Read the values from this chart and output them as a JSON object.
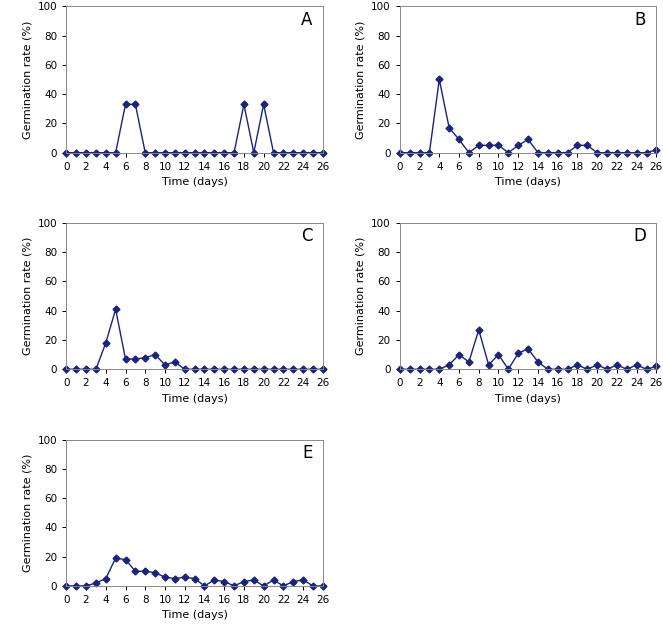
{
  "panels": [
    {
      "label": "A",
      "x": [
        0,
        1,
        2,
        3,
        4,
        5,
        6,
        7,
        8,
        9,
        10,
        11,
        12,
        13,
        14,
        15,
        16,
        17,
        18,
        19,
        20,
        21,
        22,
        23,
        24,
        25,
        26
      ],
      "y": [
        0,
        0,
        0,
        0,
        0,
        0,
        33,
        33,
        0,
        0,
        0,
        0,
        0,
        0,
        0,
        0,
        0,
        0,
        33,
        0,
        33,
        0,
        0,
        0,
        0,
        0,
        0
      ]
    },
    {
      "label": "B",
      "x": [
        0,
        1,
        2,
        3,
        4,
        5,
        6,
        7,
        8,
        9,
        10,
        11,
        12,
        13,
        14,
        15,
        16,
        17,
        18,
        19,
        20,
        21,
        22,
        23,
        24,
        25,
        26
      ],
      "y": [
        0,
        0,
        0,
        0,
        50,
        17,
        9,
        0,
        5,
        5,
        5,
        0,
        5,
        9,
        0,
        0,
        0,
        0,
        5,
        5,
        0,
        0,
        0,
        0,
        0,
        0,
        2
      ]
    },
    {
      "label": "C",
      "x": [
        0,
        1,
        2,
        3,
        4,
        5,
        6,
        7,
        8,
        9,
        10,
        11,
        12,
        13,
        14,
        15,
        16,
        17,
        18,
        19,
        20,
        21,
        22,
        23,
        24,
        25,
        26
      ],
      "y": [
        0,
        0,
        0,
        0,
        18,
        41,
        7,
        7,
        8,
        10,
        3,
        5,
        0,
        0,
        0,
        0,
        0,
        0,
        0,
        0,
        0,
        0,
        0,
        0,
        0,
        0,
        0
      ]
    },
    {
      "label": "D",
      "x": [
        0,
        1,
        2,
        3,
        4,
        5,
        6,
        7,
        8,
        9,
        10,
        11,
        12,
        13,
        14,
        15,
        16,
        17,
        18,
        19,
        20,
        21,
        22,
        23,
        24,
        25,
        26
      ],
      "y": [
        0,
        0,
        0,
        0,
        0,
        3,
        10,
        5,
        27,
        3,
        10,
        0,
        11,
        14,
        5,
        0,
        0,
        0,
        3,
        0,
        3,
        0,
        3,
        0,
        3,
        0,
        2
      ]
    },
    {
      "label": "E",
      "x": [
        0,
        1,
        2,
        3,
        4,
        5,
        6,
        7,
        8,
        9,
        10,
        11,
        12,
        13,
        14,
        15,
        16,
        17,
        18,
        19,
        20,
        21,
        22,
        23,
        24,
        25,
        26
      ],
      "y": [
        0,
        0,
        0,
        2,
        5,
        19,
        18,
        10,
        10,
        9,
        6,
        5,
        6,
        5,
        0,
        4,
        3,
        0,
        3,
        4,
        0,
        4,
        0,
        3,
        4,
        0,
        0
      ]
    }
  ],
  "line_color": "#1a237e",
  "marker": "D",
  "marker_size": 3.5,
  "linewidth": 1.0,
  "ylabel": "Germination rate (%)",
  "xlabel": "Time (days)",
  "ylim": [
    0,
    100
  ],
  "yticks": [
    0,
    20,
    40,
    60,
    80,
    100
  ],
  "xlim": [
    0,
    26
  ],
  "xticks": [
    0,
    2,
    4,
    6,
    8,
    10,
    12,
    14,
    16,
    18,
    20,
    22,
    24,
    26
  ],
  "label_fontsize": 8,
  "tick_fontsize": 7.5,
  "panel_label_fontsize": 12,
  "background_color": "#ffffff",
  "border_color": "#888888"
}
